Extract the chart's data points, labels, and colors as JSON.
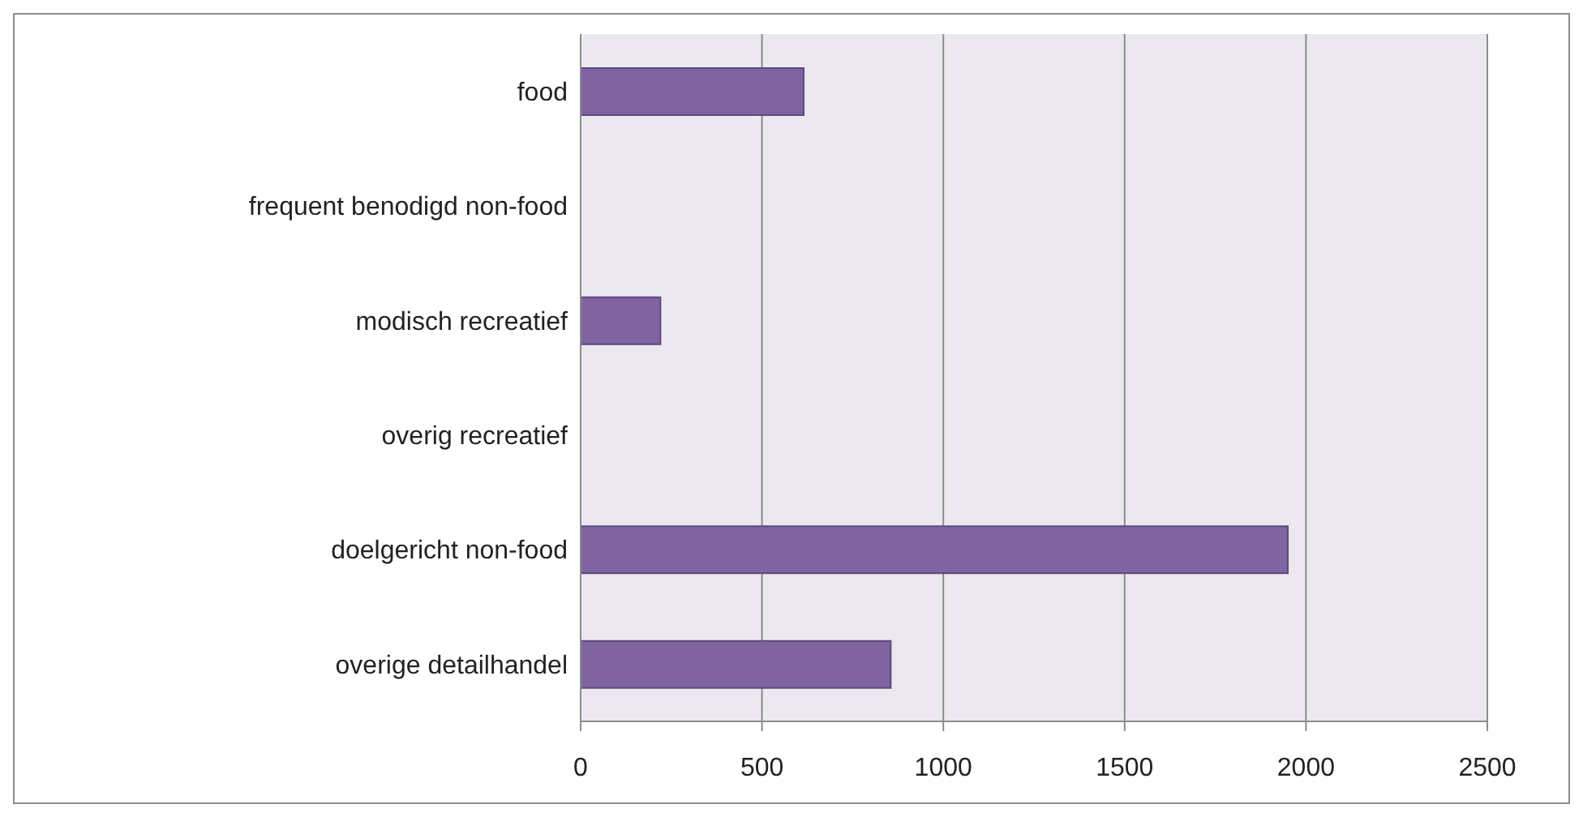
{
  "chart_data": {
    "type": "bar",
    "orientation": "horizontal",
    "categories": [
      "food",
      "frequent benodigd non-food",
      "modisch recreatief",
      "overig recreatief",
      "doelgericht non-food",
      "overige detailhandel"
    ],
    "values": [
      615,
      0,
      220,
      0,
      1950,
      855
    ],
    "color": "#8064a2",
    "xlim": [
      0,
      2500
    ],
    "xticks": [
      0,
      500,
      1000,
      1500,
      2000,
      2500
    ],
    "grid": "x"
  }
}
